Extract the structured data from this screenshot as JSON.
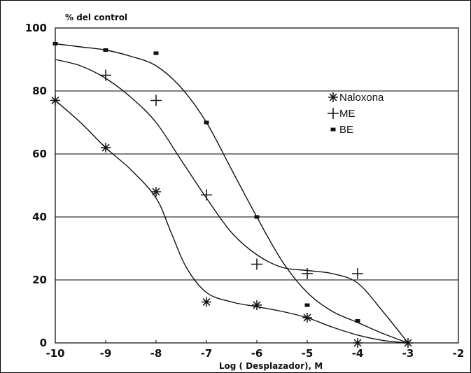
{
  "chart_data": {
    "type": "scatter",
    "xlabel": "Log ( Desplazador), M",
    "ylabel": "% del control",
    "xlim": [
      -10,
      -2
    ],
    "ylim": [
      0,
      100
    ],
    "xticks": [
      "-10",
      "-9",
      "-8",
      "-7",
      "-6",
      "-5",
      "-4",
      "-3",
      "-2"
    ],
    "yticks": [
      "0",
      "20",
      "40",
      "60",
      "80",
      "100"
    ],
    "grid": "horizontal",
    "legend_position": "top-right",
    "series": [
      {
        "name": "Naloxona",
        "marker": "asterisk",
        "x": [
          -10,
          -9,
          -8,
          -7,
          -6,
          -5,
          -4,
          -3
        ],
        "y": [
          77,
          62,
          48,
          13,
          12,
          8,
          0,
          0
        ],
        "curve": [
          [
            -10,
            77
          ],
          [
            -9.5,
            70
          ],
          [
            -9,
            62
          ],
          [
            -8.5,
            55
          ],
          [
            -8,
            46
          ],
          [
            -7.7,
            35
          ],
          [
            -7.4,
            24
          ],
          [
            -7,
            16
          ],
          [
            -6.5,
            13
          ],
          [
            -6,
            11.5
          ],
          [
            -5.5,
            10
          ],
          [
            -5,
            8
          ],
          [
            -4.5,
            5
          ],
          [
            -4,
            2.5
          ],
          [
            -3.5,
            0.8
          ],
          [
            -3,
            0
          ]
        ]
      },
      {
        "name": "ME",
        "marker": "plus",
        "x": [
          -9,
          -8,
          -7,
          -6,
          -5,
          -4
        ],
        "y": [
          85,
          77,
          47,
          25,
          22,
          22
        ],
        "curve": [
          [
            -10,
            90
          ],
          [
            -9.5,
            88
          ],
          [
            -9,
            84
          ],
          [
            -8.5,
            78
          ],
          [
            -8,
            70
          ],
          [
            -7.5,
            58
          ],
          [
            -7,
            46
          ],
          [
            -6.5,
            35
          ],
          [
            -6,
            28
          ],
          [
            -5.5,
            24
          ],
          [
            -5,
            23
          ],
          [
            -4.5,
            22
          ],
          [
            -4,
            19
          ],
          [
            -3.5,
            10
          ],
          [
            -3,
            0
          ]
        ]
      },
      {
        "name": "BE",
        "marker": "square",
        "x": [
          -10,
          -9,
          -8,
          -7,
          -6,
          -5,
          -4
        ],
        "y": [
          95,
          93,
          92,
          70,
          40,
          12,
          7
        ],
        "curve": [
          [
            -10,
            95
          ],
          [
            -9.5,
            94
          ],
          [
            -9,
            93
          ],
          [
            -8.5,
            91
          ],
          [
            -8,
            88
          ],
          [
            -7.5,
            81
          ],
          [
            -7,
            70
          ],
          [
            -6.5,
            55
          ],
          [
            -6,
            40
          ],
          [
            -5.5,
            26
          ],
          [
            -5,
            16
          ],
          [
            -4.5,
            10
          ],
          [
            -4,
            6.5
          ],
          [
            -3.5,
            3
          ],
          [
            -3,
            0
          ]
        ]
      }
    ]
  }
}
